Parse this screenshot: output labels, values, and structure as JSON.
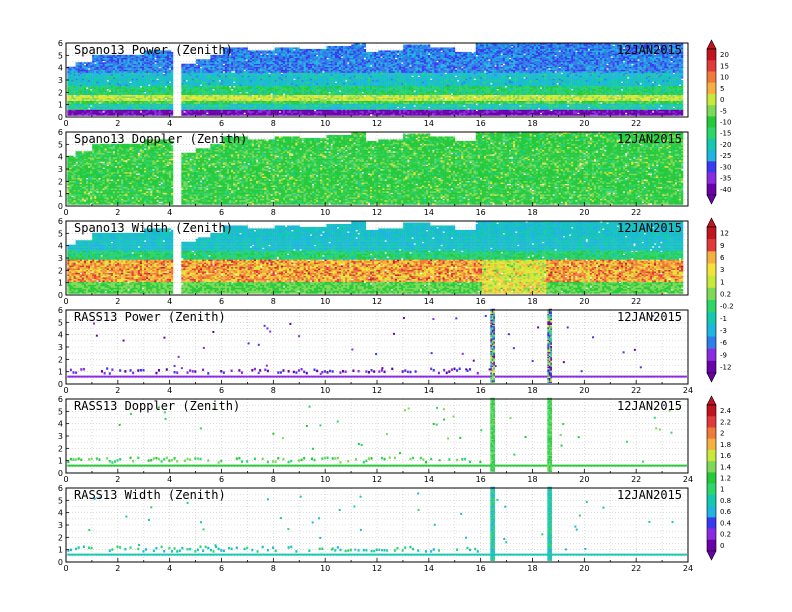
{
  "chart_data": {
    "type": "heatmap",
    "date": "12JAN2015",
    "x": {
      "min": 0,
      "max": 24,
      "step": 2
    },
    "y": {
      "min": 0,
      "max": 6,
      "step": 1
    },
    "colors": [
      "#6a00a8",
      "#8a2be2",
      "#3a3af0",
      "#2f7fe8",
      "#1fb5e0",
      "#15c9b0",
      "#2ed66a",
      "#26c93a",
      "#7ed957",
      "#c8e83a",
      "#f2e23a",
      "#f5b041",
      "#f07a3a",
      "#e03a3a",
      "#c0141e"
    ],
    "panels": [
      {
        "title": "Spano13 Power (Zenith)",
        "kind": "spano",
        "profile": "power",
        "colorbar": [
          "20",
          "15",
          "10",
          "5",
          "0",
          "-5",
          "-10",
          "-15",
          "-20",
          "-25",
          "-30",
          "-35",
          "-40"
        ]
      },
      {
        "title": "Spano13 Doppler (Zenith)",
        "kind": "spano",
        "profile": "doppler"
      },
      {
        "title": "Spano13 Width (Zenith)",
        "kind": "spano",
        "profile": "width",
        "colorbar": [
          "12",
          "9",
          "6",
          "3",
          "1",
          "0.2",
          "-0.2",
          "-1",
          "-3",
          "-6",
          "-9",
          "-12"
        ]
      },
      {
        "title": "RASS13 Power (Zenith)",
        "kind": "rass",
        "profile": "power"
      },
      {
        "title": "RASS13 Doppler (Zenith)",
        "kind": "rass",
        "profile": "doppler",
        "colorbar": [
          "2.4",
          "2.2",
          "2",
          "1.8",
          "1.6",
          "1.4",
          "1.2",
          "1",
          "0.8",
          "0.6",
          "0.4",
          "0.2",
          "0"
        ]
      },
      {
        "title": "RASS13 Width (Zenith)",
        "kind": "rass",
        "profile": "width"
      }
    ],
    "spano_coverage": [
      [
        0.0,
        4.0
      ],
      [
        0.3,
        4.4
      ],
      [
        1.0,
        5.0
      ],
      [
        2.0,
        5.0
      ],
      [
        3.0,
        5.3
      ],
      [
        4.0,
        5.2
      ],
      [
        4.1,
        0.0
      ],
      [
        4.2,
        0.0
      ],
      [
        4.4,
        4.3
      ],
      [
        5.0,
        4.6
      ],
      [
        5.5,
        5.0
      ],
      [
        6.0,
        5.6
      ],
      [
        7.0,
        5.4
      ],
      [
        8.0,
        5.6
      ],
      [
        9.0,
        5.5
      ],
      [
        10.0,
        5.7
      ],
      [
        11.0,
        5.9
      ],
      [
        11.5,
        5.2
      ],
      [
        12.0,
        5.4
      ],
      [
        13.0,
        5.8
      ],
      [
        14.0,
        5.6
      ],
      [
        15.0,
        5.2
      ],
      [
        15.8,
        6.0
      ],
      [
        17.0,
        6.0
      ],
      [
        20.0,
        6.0
      ],
      [
        22.0,
        6.0
      ],
      [
        23.7,
        6.0
      ]
    ],
    "rass_spikes": [
      16.45,
      18.65
    ],
    "rass_band_height": 0.6
  }
}
